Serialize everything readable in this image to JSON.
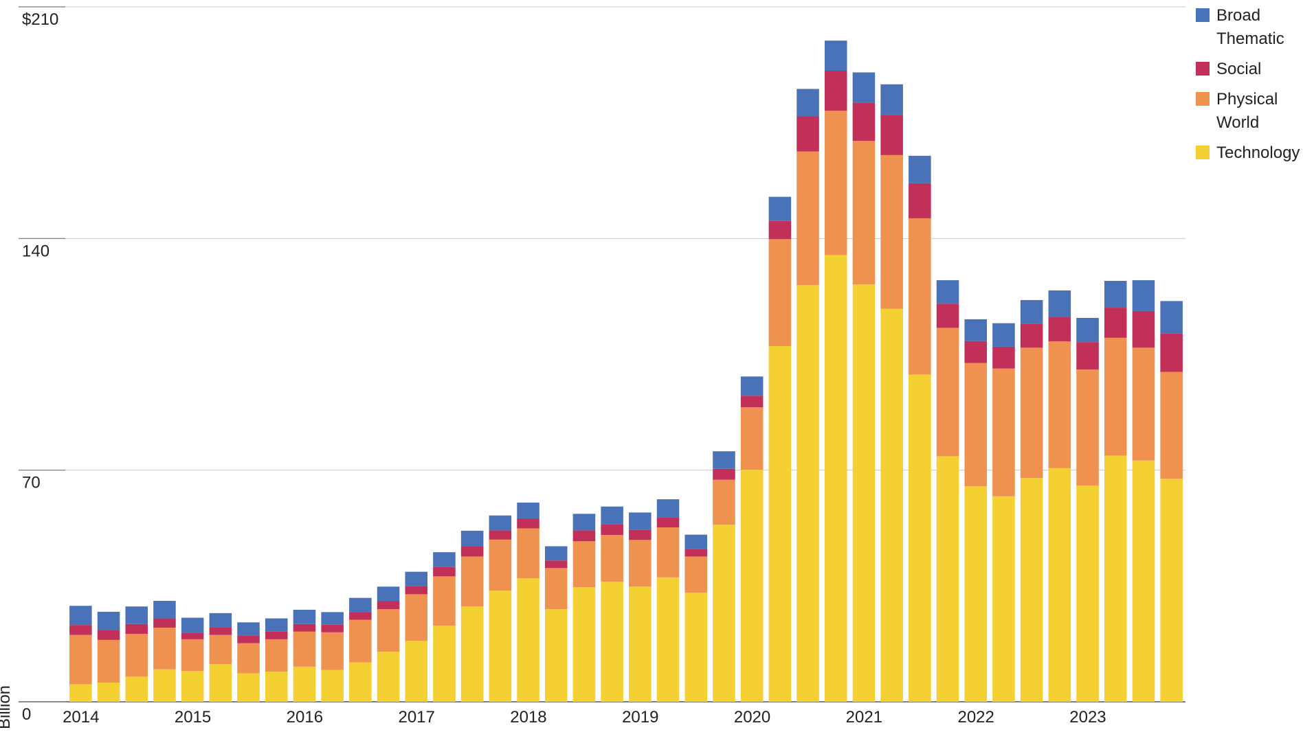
{
  "chart_data": {
    "type": "stacked-bar",
    "y_label": "Billion",
    "categories": [
      "2014",
      null,
      null,
      null,
      "2015",
      null,
      null,
      null,
      "2016",
      null,
      null,
      null,
      "2017",
      null,
      null,
      null,
      "2018",
      null,
      null,
      null,
      "2019",
      null,
      null,
      null,
      "2020",
      null,
      null,
      null,
      "2021",
      null,
      null,
      null,
      "2022",
      null,
      null,
      null,
      "2023",
      null,
      null,
      null
    ],
    "series": [
      {
        "name": "Technology",
        "color": "#f5d033",
        "values": [
          5.3,
          5.8,
          7.6,
          9.8,
          9.3,
          11.4,
          8.6,
          9.1,
          10.6,
          9.6,
          11.9,
          15.1,
          18.4,
          23.0,
          28.8,
          33.6,
          37.3,
          28.0,
          34.6,
          36.3,
          34.8,
          37.6,
          33.0,
          53.5,
          70.1,
          107.5,
          125.9,
          135.0,
          126.1,
          118.8,
          98.9,
          74.2,
          65.1,
          62.1,
          67.6,
          70.6,
          65.3,
          74.4,
          72.9,
          67.4
        ]
      },
      {
        "name": "Physical World",
        "color": "#f0924f",
        "values": [
          14.9,
          12.9,
          12.9,
          12.6,
          9.6,
          8.8,
          9.1,
          9.8,
          10.6,
          11.4,
          12.9,
          12.9,
          14.1,
          14.9,
          15.1,
          15.4,
          15.1,
          12.4,
          13.9,
          14.1,
          14.1,
          15.1,
          10.9,
          13.6,
          18.9,
          32.3,
          40.4,
          43.6,
          43.4,
          46.4,
          47.2,
          38.8,
          37.3,
          38.6,
          39.4,
          38.3,
          35.1,
          35.6,
          34.1,
          32.3
        ]
      },
      {
        "name": "Social",
        "color": "#c2305a",
        "values": [
          3.0,
          3.0,
          3.0,
          2.8,
          2.0,
          2.3,
          2.3,
          2.3,
          2.3,
          2.3,
          2.3,
          2.5,
          2.5,
          2.8,
          3.0,
          2.8,
          3.0,
          2.3,
          3.3,
          3.3,
          3.0,
          3.0,
          2.3,
          3.3,
          3.5,
          5.5,
          10.6,
          12.1,
          11.6,
          12.1,
          10.6,
          7.3,
          6.6,
          6.6,
          7.3,
          7.3,
          8.3,
          9.1,
          11.1,
          11.6
        ]
      },
      {
        "name": "Broad Thematic",
        "color": "#4a72b8",
        "values": [
          5.8,
          5.5,
          5.3,
          5.3,
          4.5,
          4.3,
          4.0,
          4.0,
          4.3,
          3.8,
          4.3,
          4.3,
          4.3,
          4.5,
          4.8,
          4.5,
          4.8,
          4.3,
          5.0,
          5.3,
          5.3,
          5.5,
          4.3,
          5.3,
          5.8,
          7.3,
          8.3,
          9.1,
          9.1,
          9.3,
          8.3,
          7.1,
          6.6,
          7.1,
          7.1,
          8.1,
          7.3,
          8.1,
          9.3,
          9.8
        ]
      }
    ],
    "ylim": [
      0,
      210
    ],
    "yticks": [
      0,
      70,
      140,
      {
        "value": 210,
        "label": "$210"
      }
    ],
    "grid": true,
    "legend": "top-right"
  }
}
